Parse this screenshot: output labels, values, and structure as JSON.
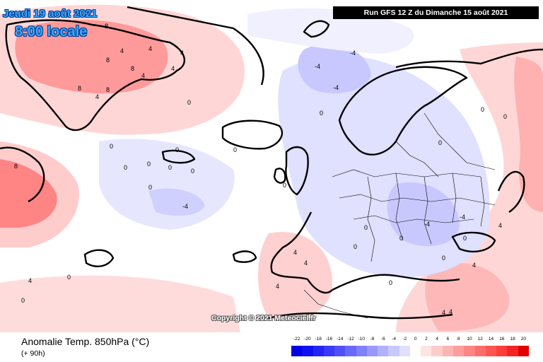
{
  "header": {
    "date_title": "Jeudi 19 août 2021",
    "local_time": "8:00 locale",
    "run_info": "Run GFS 12 Z du Dimanche 15 août 2021"
  },
  "copyright": "Copyright © 2021 Meteociel.fr",
  "footer": {
    "chart_title": "Anomalie Temp. 850hPa (°C)",
    "lead_time": "(+ 90h)"
  },
  "legend": {
    "labels": [
      "-22",
      "-20",
      "-18",
      "-16",
      "-14",
      "-12",
      "-10",
      "-8",
      "-6",
      "-4",
      "-2",
      "0",
      "2",
      "4",
      "6",
      "8",
      "10",
      "12",
      "14",
      "16",
      "18",
      "20"
    ],
    "colors": [
      "#0000e6",
      "#1010f0",
      "#2424f5",
      "#3a3af8",
      "#5050fa",
      "#6868fb",
      "#8080fc",
      "#9898fd",
      "#b0b0fe",
      "#c8c8ff",
      "#e0e0ff",
      "#ffffff",
      "#ffe4e4",
      "#ffcccc",
      "#ffb4b4",
      "#ff9c9c",
      "#ff8484",
      "#ff6c6c",
      "#ff5454",
      "#ff3c3c",
      "#f52424",
      "#e00000"
    ]
  },
  "contour_labels": [
    "8",
    "4",
    "4",
    "8",
    "8",
    "4",
    "8",
    "4",
    "0",
    "4",
    "8",
    "4",
    "0",
    "0",
    "0",
    "0",
    "0",
    "0",
    "-4",
    "-4",
    "-4",
    "-4",
    "0",
    "0",
    "0",
    "0",
    "4",
    "4",
    "0",
    "0",
    "0",
    "4",
    "4",
    "4",
    "0",
    "0",
    "0",
    "-4",
    "-4",
    "0",
    "0",
    "0",
    "4",
    "4",
    "8",
    "4",
    "0",
    "0"
  ]
}
